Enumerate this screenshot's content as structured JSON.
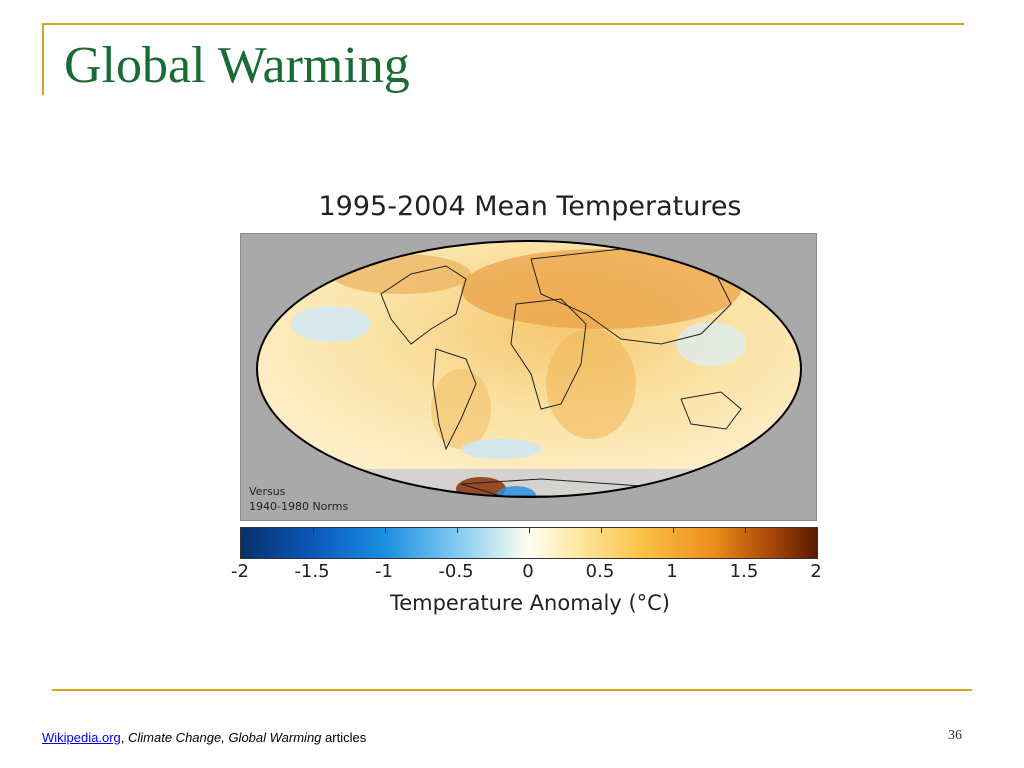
{
  "slide": {
    "title": "Global Warming",
    "number": "36",
    "colors": {
      "title": "#1a6b34",
      "rule": "#d6a21f",
      "link": "#0000ee"
    }
  },
  "figure": {
    "title": "1995-2004 Mean Temperatures",
    "note_line1": "Versus",
    "note_line2": "1940-1980 Norms",
    "colorbar_caption": "Temperature Anomaly (°C)",
    "colorbar_ticks": [
      "-2",
      "-1.5",
      "-1",
      "-0.5",
      "0",
      "0.5",
      "1",
      "1.5",
      "2"
    ],
    "colorbar_range": [
      -2,
      2
    ],
    "colormap": "blue-white-orange-brown"
  },
  "footer": {
    "link_text": "Wikipedia.org",
    "separator": ", ",
    "topics": "Climate Change, Global Warming",
    "suffix": " articles"
  }
}
